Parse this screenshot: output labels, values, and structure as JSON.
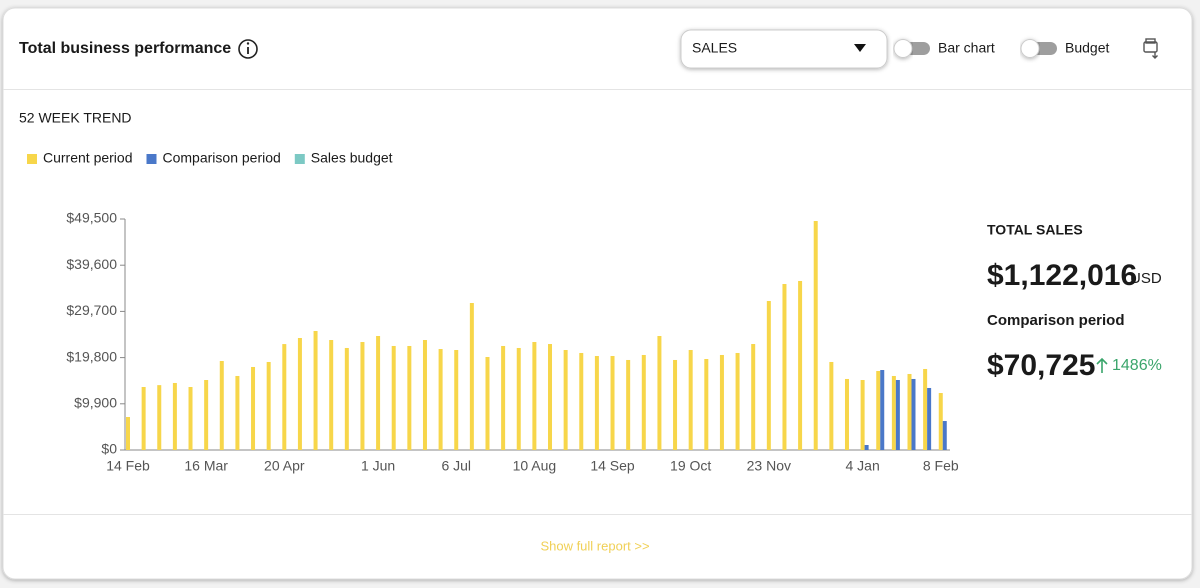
{
  "header": {
    "title": "Total business performance",
    "dropdown": "SALES",
    "toggles": [
      "Bar chart",
      "Budget"
    ]
  },
  "chart_data": {
    "type": "bar",
    "title": "52 WEEK TREND",
    "categories": [
      "14 Feb",
      null,
      null,
      null,
      null,
      "16 Mar",
      null,
      null,
      null,
      null,
      "20 Apr",
      null,
      null,
      null,
      null,
      null,
      "1 Jun",
      null,
      null,
      null,
      null,
      "6 Jul",
      null,
      null,
      null,
      null,
      "10 Aug",
      null,
      null,
      null,
      null,
      "14 Sep",
      null,
      null,
      null,
      null,
      "19 Oct",
      null,
      null,
      null,
      null,
      "23 Nov",
      null,
      null,
      null,
      null,
      null,
      "4 Jan",
      null,
      null,
      null,
      null,
      "8 Feb"
    ],
    "series": [
      {
        "name": "Current period",
        "color": "#f7d64a",
        "values": [
          7070,
          13500,
          13900,
          14360,
          13500,
          15000,
          19070,
          15860,
          17790,
          18860,
          22700,
          24000,
          25500,
          23570,
          21860,
          23140,
          24430,
          22290,
          22290,
          23570,
          21640,
          21430,
          31500,
          19930,
          22290,
          21860,
          23140,
          22710,
          21430,
          20790,
          20140,
          20140,
          19290,
          20360,
          24430,
          19290,
          21430,
          19500,
          20360,
          20790,
          22710,
          31930,
          35570,
          36220,
          49070,
          18860,
          15220,
          15000,
          16930,
          15860,
          16290,
          17360,
          12210
        ]
      },
      {
        "name": "Comparison period",
        "color": "#4a78c9",
        "values": [
          null,
          null,
          null,
          null,
          null,
          null,
          null,
          null,
          null,
          null,
          null,
          null,
          null,
          null,
          null,
          null,
          null,
          null,
          null,
          null,
          null,
          null,
          null,
          null,
          null,
          null,
          null,
          null,
          null,
          null,
          null,
          null,
          null,
          null,
          null,
          null,
          null,
          null,
          null,
          null,
          null,
          null,
          null,
          null,
          null,
          null,
          null,
          1070,
          17140,
          15000,
          15220,
          13290,
          6210
        ]
      },
      {
        "name": "Sales budget",
        "color": "#7cc9c4",
        "values": [
          null,
          null,
          null,
          null,
          null,
          null,
          null,
          null,
          null,
          null,
          null,
          null,
          null,
          null,
          null,
          null,
          null,
          null,
          null,
          null,
          null,
          null,
          null,
          null,
          null,
          null,
          null,
          null,
          null,
          null,
          null,
          null,
          null,
          null,
          null,
          null,
          null,
          null,
          null,
          null,
          null,
          null,
          null,
          null,
          null,
          null,
          null,
          null,
          null,
          null,
          null,
          null,
          null
        ]
      }
    ],
    "ylim": [
      0,
      49500
    ],
    "yticks": [
      {
        "value": 0,
        "label": "$0"
      },
      {
        "value": 9900,
        "label": "$9,900"
      },
      {
        "value": 19800,
        "label": "$19,800"
      },
      {
        "value": 29700,
        "label": "$29,700"
      },
      {
        "value": 39600,
        "label": "$39,600"
      },
      {
        "value": 49500,
        "label": "$49,500"
      }
    ]
  },
  "summary": {
    "total_label": "TOTAL SALES",
    "total": "$1,122,016",
    "currency": "USD",
    "comparison_label": "Comparison period",
    "comparison": "$70,725",
    "change": "1486%"
  },
  "footer": {
    "link": "Show full report >>"
  }
}
